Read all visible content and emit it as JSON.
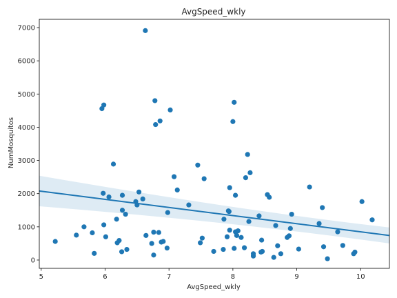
{
  "chart_data": {
    "type": "scatter",
    "title": "AvgSpeed_wkly",
    "xlabel": "AvgSpeed_wkly",
    "ylabel": "NumMosquitos",
    "xlim": [
      4.97,
      10.45
    ],
    "ylim": [
      -250,
      7250
    ],
    "xticks": [
      5,
      6,
      7,
      8,
      9,
      10
    ],
    "yticks": [
      0,
      1000,
      2000,
      3000,
      4000,
      5000,
      6000,
      7000
    ],
    "grid": false,
    "point_color": "#1f77b4",
    "regression": {
      "x": [
        4.97,
        10.45
      ],
      "y": [
        2080,
        740
      ],
      "ci_upper": [
        2540,
        980
      ],
      "ci_lower": [
        1620,
        500
      ],
      "ci_color": "#1f77b4"
    },
    "points": [
      [
        5.22,
        560
      ],
      [
        5.55,
        750
      ],
      [
        5.67,
        1000
      ],
      [
        5.8,
        820
      ],
      [
        5.83,
        200
      ],
      [
        5.95,
        4560
      ],
      [
        5.98,
        4670
      ],
      [
        5.97,
        2010
      ],
      [
        5.98,
        1060
      ],
      [
        6.01,
        700
      ],
      [
        6.06,
        1900
      ],
      [
        6.13,
        2890
      ],
      [
        6.18,
        1230
      ],
      [
        6.19,
        520
      ],
      [
        6.22,
        590
      ],
      [
        6.26,
        250
      ],
      [
        6.27,
        1950
      ],
      [
        6.27,
        1500
      ],
      [
        6.32,
        1380
      ],
      [
        6.34,
        320
      ],
      [
        6.48,
        1760
      ],
      [
        6.5,
        1660
      ],
      [
        6.53,
        2050
      ],
      [
        6.59,
        1840
      ],
      [
        6.63,
        6910
      ],
      [
        6.64,
        740
      ],
      [
        6.73,
        500
      ],
      [
        6.76,
        840
      ],
      [
        6.76,
        150
      ],
      [
        6.78,
        4800
      ],
      [
        6.79,
        4080
      ],
      [
        6.84,
        830
      ],
      [
        6.86,
        4190
      ],
      [
        6.88,
        540
      ],
      [
        6.91,
        560
      ],
      [
        6.97,
        360
      ],
      [
        6.98,
        1430
      ],
      [
        7.02,
        4520
      ],
      [
        7.08,
        2510
      ],
      [
        7.13,
        2110
      ],
      [
        7.31,
        1660
      ],
      [
        7.45,
        2860
      ],
      [
        7.49,
        520
      ],
      [
        7.52,
        660
      ],
      [
        7.55,
        2450
      ],
      [
        7.7,
        260
      ],
      [
        7.85,
        320
      ],
      [
        7.86,
        1230
      ],
      [
        7.91,
        700
      ],
      [
        7.93,
        1480
      ],
      [
        7.94,
        1460
      ],
      [
        7.95,
        2180
      ],
      [
        7.95,
        900
      ],
      [
        8.0,
        4170
      ],
      [
        8.02,
        4750
      ],
      [
        8.02,
        350
      ],
      [
        8.04,
        850
      ],
      [
        8.04,
        1950
      ],
      [
        8.06,
        740
      ],
      [
        8.08,
        880
      ],
      [
        8.13,
        680
      ],
      [
        8.18,
        370
      ],
      [
        8.2,
        2480
      ],
      [
        8.23,
        3180
      ],
      [
        8.25,
        1160
      ],
      [
        8.27,
        2630
      ],
      [
        8.32,
        120
      ],
      [
        8.32,
        190
      ],
      [
        8.41,
        1330
      ],
      [
        8.44,
        240
      ],
      [
        8.45,
        600
      ],
      [
        8.46,
        260
      ],
      [
        8.54,
        1970
      ],
      [
        8.57,
        1890
      ],
      [
        8.64,
        80
      ],
      [
        8.67,
        1040
      ],
      [
        8.7,
        430
      ],
      [
        8.75,
        190
      ],
      [
        8.85,
        680
      ],
      [
        8.88,
        730
      ],
      [
        8.9,
        950
      ],
      [
        8.92,
        1380
      ],
      [
        9.03,
        330
      ],
      [
        9.2,
        2200
      ],
      [
        9.35,
        1100
      ],
      [
        9.4,
        1580
      ],
      [
        9.42,
        400
      ],
      [
        9.48,
        40
      ],
      [
        9.64,
        850
      ],
      [
        9.72,
        440
      ],
      [
        9.89,
        190
      ],
      [
        9.91,
        240
      ],
      [
        10.02,
        1760
      ],
      [
        10.18,
        1210
      ]
    ]
  }
}
